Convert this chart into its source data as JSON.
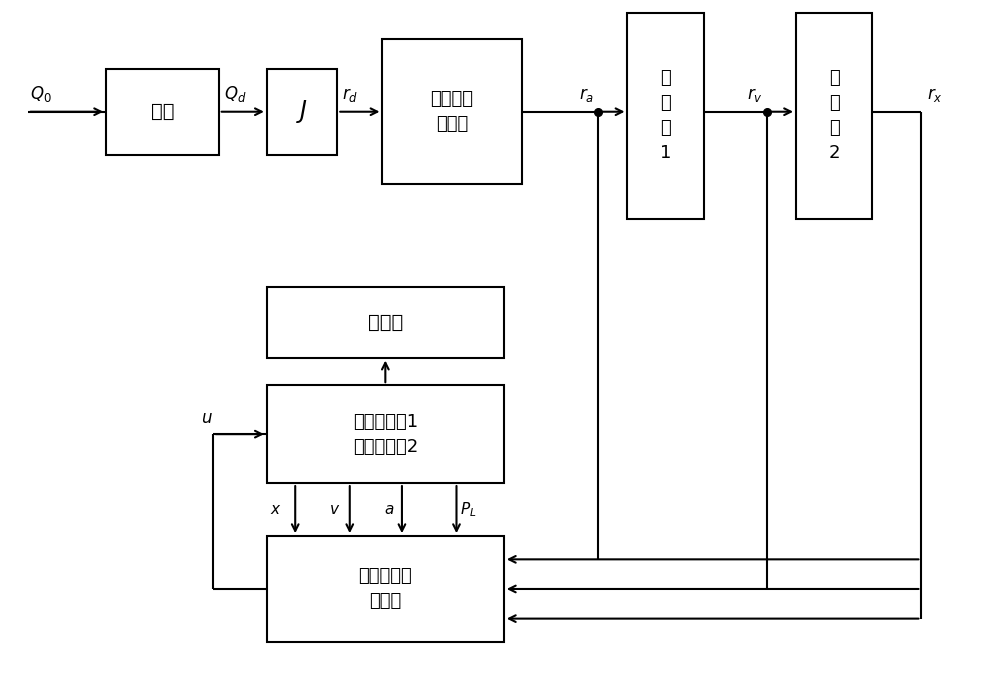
{
  "bg": "#ffffff",
  "lc": "#000000",
  "lw": 1.5,
  "figsize": [
    10.0,
    6.86
  ],
  "dpi": 100,
  "sf": [
    0.98,
    5.35,
    1.15,
    0.88
  ],
  "jb": [
    2.62,
    5.35,
    0.72,
    0.88
  ],
  "rg": [
    3.8,
    5.05,
    1.42,
    1.48
  ],
  "i1": [
    6.3,
    4.7,
    0.78,
    2.1
  ],
  "i2": [
    8.02,
    4.7,
    0.78,
    2.1
  ],
  "sp": [
    2.62,
    3.28,
    2.42,
    0.72
  ],
  "vc": [
    2.62,
    2.0,
    2.42,
    1.0
  ],
  "dc": [
    2.62,
    0.38,
    2.42,
    1.08
  ],
  "top_row_labels": {
    "Q0": [
      0.62,
      5.84,
      "$Q_0$"
    ],
    "Qd": [
      2.12,
      5.84,
      "$Q_d$"
    ],
    "rd": [
      3.44,
      5.84,
      "$r_d$"
    ],
    "ra": [
      5.92,
      5.84,
      "$r_a$"
    ],
    "rv": [
      7.52,
      5.84,
      "$r_v$"
    ],
    "rx": [
      9.05,
      5.84,
      "$r_x$"
    ]
  },
  "signal_labels": {
    "x": [
      3.01,
      1.73,
      "$x$"
    ],
    "v": [
      3.38,
      1.73,
      "$v$"
    ],
    "a": [
      3.75,
      1.73,
      "$a$"
    ],
    "PL": [
      4.1,
      1.73,
      "$P_L$"
    ],
    "u": [
      2.18,
      2.52,
      "$u$"
    ]
  }
}
